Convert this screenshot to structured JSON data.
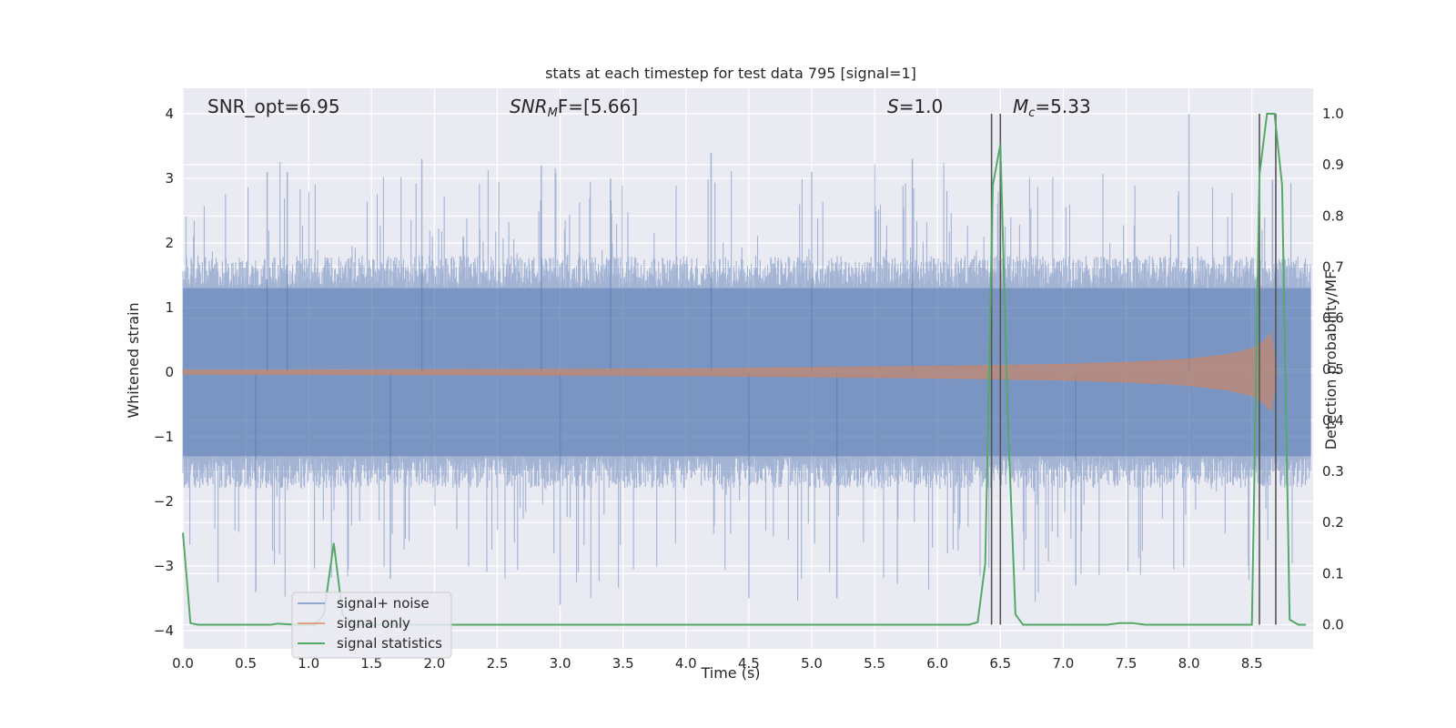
{
  "chart_data": {
    "type": "line",
    "title": "stats at each timestep for test data 795 [signal=1]",
    "xlabel": "Time (s)",
    "ylabel_left": "Whitened strain",
    "ylabel_right": "Detection probability/MF",
    "xlim": [
      0.0,
      9.0
    ],
    "ylim_left": [
      -4.35,
      4.35
    ],
    "ylim_right": [
      -0.047,
      1.047
    ],
    "x_ticks": [
      "0.0",
      "0.5",
      "1.0",
      "1.5",
      "2.0",
      "2.5",
      "3.0",
      "3.5",
      "4.0",
      "4.5",
      "5.0",
      "5.5",
      "6.0",
      "6.5",
      "7.0",
      "7.5",
      "8.0",
      "8.5"
    ],
    "x_tick_values": [
      0.0,
      0.5,
      1.0,
      1.5,
      2.0,
      2.5,
      3.0,
      3.5,
      4.0,
      4.5,
      5.0,
      5.5,
      6.0,
      6.5,
      7.0,
      7.5,
      8.0,
      8.5
    ],
    "y_left_ticks": [
      "4",
      "3",
      "2",
      "1",
      "0",
      "−1",
      "−2",
      "−3",
      "−4"
    ],
    "y_left_tick_values": [
      4,
      3,
      2,
      1,
      0,
      -1,
      -2,
      -3,
      -4
    ],
    "y_right_ticks": [
      "1.0",
      "0.9",
      "0.8",
      "0.7",
      "0.6",
      "0.5",
      "0.4",
      "0.3",
      "0.2",
      "0.1",
      "0.0"
    ],
    "y_right_tick_values": [
      1.0,
      0.9,
      0.8,
      0.7,
      0.6,
      0.5,
      0.4,
      0.3,
      0.2,
      0.1,
      0.0
    ],
    "annotations": {
      "snr_opt": "SNR_opt=6.95",
      "snr_mf_main": "SNR",
      "snr_mf_sub": "M",
      "snr_mf_rest": "F=[5.66]",
      "s_main": "S",
      "s_rest": "=1.0",
      "mc_main": "M",
      "mc_sub": "c",
      "mc_rest": "=5.33"
    },
    "series": [
      {
        "name": "signal+ noise",
        "color": "#4c72b0",
        "axis": "left",
        "style": "dense noise, amplitude envelope ~ ±2 to ±3.9",
        "peak_values": [
          3.1,
          3.1,
          3.3,
          3.4,
          3.1,
          3.3,
          3.2,
          4.0,
          3.0,
          -3.4,
          -3.6,
          -3.5,
          -3.5,
          -3.3,
          -3.2
        ]
      },
      {
        "name": "signal only",
        "color": "#dd8452",
        "axis": "left",
        "envelope": {
          "x": [
            0.0,
            2.0,
            4.0,
            6.0,
            7.0,
            7.5,
            8.0,
            8.3,
            8.5,
            8.6,
            8.65,
            8.7
          ],
          "amp": [
            0.03,
            0.04,
            0.05,
            0.09,
            0.12,
            0.15,
            0.2,
            0.27,
            0.36,
            0.48,
            0.6,
            0.0
          ]
        }
      },
      {
        "name": "signal statistics",
        "color": "#55a868",
        "axis": "right",
        "x": [
          0.0,
          0.06,
          0.12,
          0.2,
          0.7,
          0.75,
          0.9,
          1.05,
          1.12,
          1.2,
          1.27,
          1.35,
          1.5,
          6.25,
          6.32,
          6.38,
          6.44,
          6.5,
          6.56,
          6.62,
          6.68,
          6.8,
          7.35,
          7.45,
          7.55,
          7.65,
          8.5,
          8.56,
          8.62,
          8.68,
          8.74,
          8.8,
          8.87,
          8.93
        ],
        "values": [
          0.18,
          0.003,
          0.0,
          0.0,
          0.0,
          0.002,
          0.0,
          0.0,
          0.02,
          0.16,
          0.02,
          0.0,
          0.0,
          0.0,
          0.005,
          0.12,
          0.86,
          0.94,
          0.4,
          0.02,
          0.0,
          0.0,
          0.0,
          0.003,
          0.003,
          0.0,
          0.0,
          0.88,
          1.0,
          1.0,
          0.86,
          0.01,
          0.0,
          0.0
        ]
      }
    ],
    "vertical_lines": [
      6.43,
      6.5,
      8.56,
      8.69
    ],
    "vertical_line_color": "#555555",
    "legend_placement": "lower-left",
    "grid": true,
    "background_color": "#eaeaf2"
  }
}
